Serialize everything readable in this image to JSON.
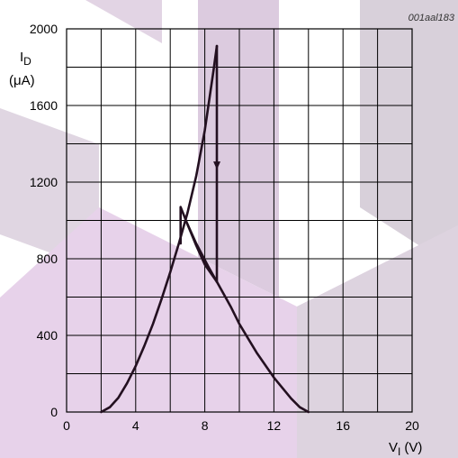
{
  "chart_data": {
    "type": "line",
    "reference": "001aal183",
    "ylabel_main": "I",
    "ylabel_sub": "D",
    "ylabel_unit": "(μA)",
    "xlabel_main": "V",
    "xlabel_sub": "I",
    "xlabel_unit": "(V)",
    "xlim": [
      0,
      20
    ],
    "ylim": [
      0,
      2000
    ],
    "x_ticks": [
      "0",
      "4",
      "8",
      "12",
      "16",
      "20"
    ],
    "y_ticks": [
      "0",
      "400",
      "800",
      "1200",
      "1600",
      "2000"
    ],
    "grid": true,
    "series": [
      {
        "points": [
          [
            2.0,
            0
          ],
          [
            2.5,
            25
          ],
          [
            3.0,
            75
          ],
          [
            3.5,
            150
          ],
          [
            4.0,
            240
          ],
          [
            4.5,
            345
          ],
          [
            5.0,
            460
          ],
          [
            5.5,
            590
          ],
          [
            6.0,
            730
          ],
          [
            6.5,
            880
          ],
          [
            7.0,
            1040
          ],
          [
            7.5,
            1230
          ],
          [
            8.0,
            1470
          ],
          [
            8.5,
            1780
          ],
          [
            8.7,
            1910
          ]
        ]
      },
      {
        "points": [
          [
            8.7,
            1910
          ],
          [
            8.7,
            680
          ]
        ],
        "arrow_at": [
          8.7,
          1270
        ]
      },
      {
        "points": [
          [
            8.7,
            680
          ],
          [
            8.2,
            760
          ],
          [
            7.5,
            880
          ],
          [
            7.0,
            980
          ],
          [
            6.6,
            1070
          ],
          [
            6.6,
            880
          ]
        ]
      },
      {
        "points": [
          [
            7.0,
            980
          ],
          [
            7.5,
            870
          ],
          [
            8.0,
            770
          ],
          [
            8.7,
            680
          ],
          [
            9.5,
            550
          ],
          [
            10.0,
            460
          ],
          [
            11.0,
            310
          ],
          [
            12.0,
            180
          ],
          [
            13.0,
            70
          ],
          [
            13.5,
            25
          ],
          [
            14.0,
            0
          ]
        ]
      }
    ]
  }
}
